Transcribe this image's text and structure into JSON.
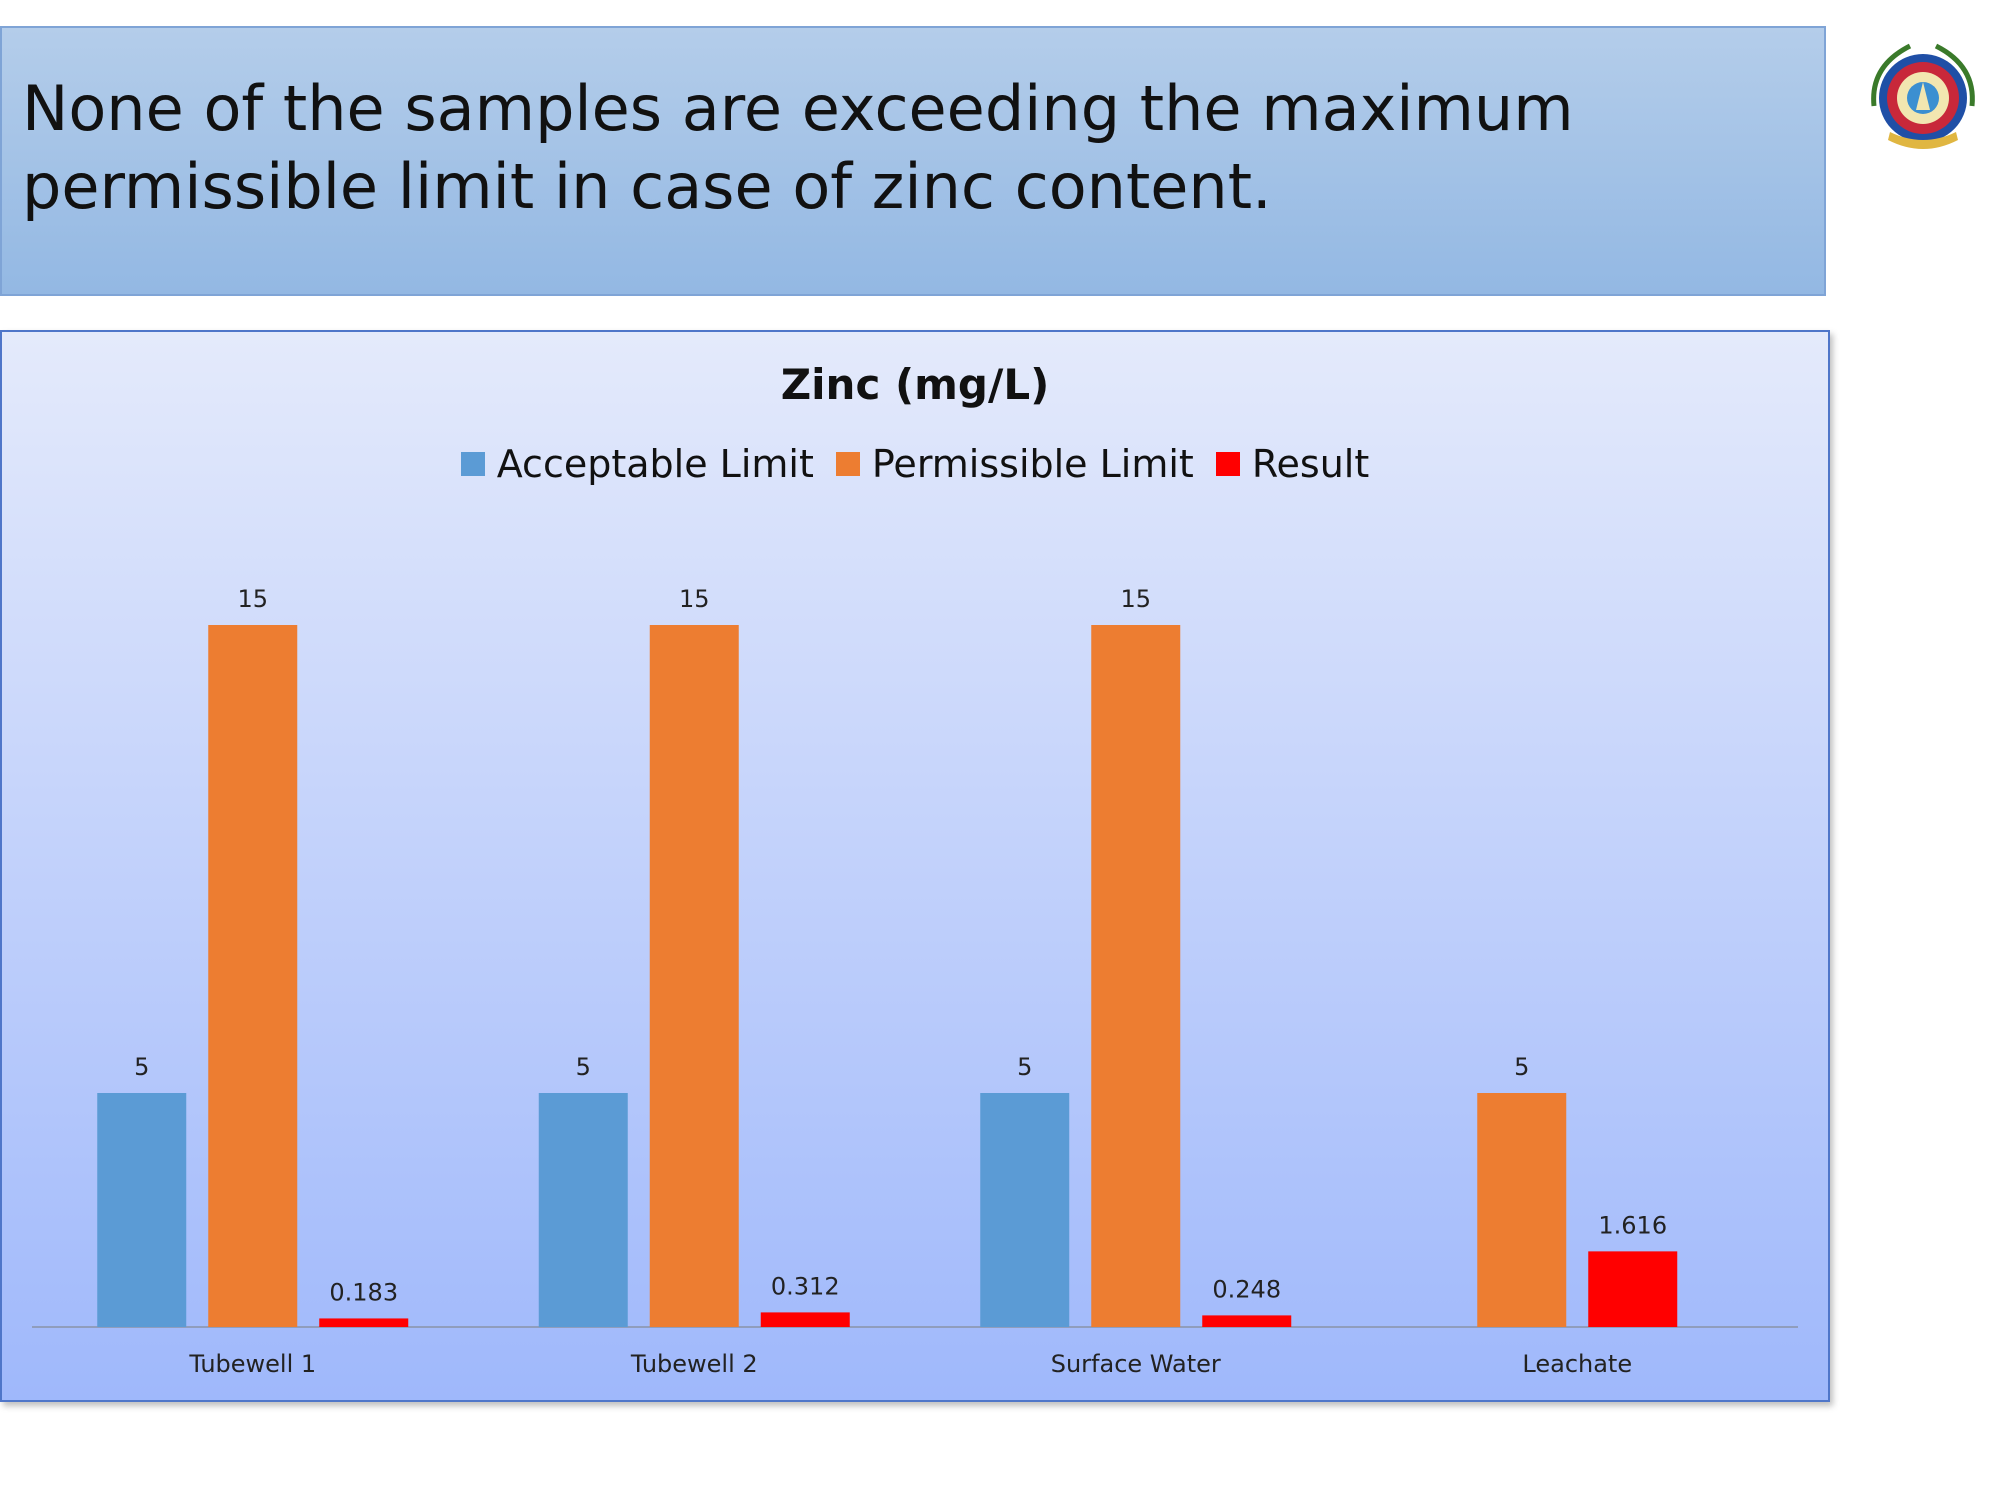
{
  "header": {
    "text": "None of the samples are exceeding the maximum permissible limit in case of zinc content."
  },
  "logo": {
    "icon": "institution-seal-icon"
  },
  "colors": {
    "header_bg_top": "#b4cdea",
    "header_bg_bottom": "#93b8e3",
    "acceptable": "#5b9bd5",
    "permissible": "#ed7d31",
    "result": "#ff0000"
  },
  "chart_data": {
    "type": "bar",
    "title": "Zinc (mg/L)",
    "categories": [
      "Tubewell 1",
      "Tubewell 2",
      "Surface Water",
      "Leachate"
    ],
    "series": [
      {
        "name": "Acceptable Limit",
        "values": [
          5,
          5,
          5,
          null
        ],
        "labels": [
          "5",
          "5",
          "5",
          ""
        ]
      },
      {
        "name": "Permissible Limit",
        "values": [
          15,
          15,
          15,
          5
        ],
        "labels": [
          "15",
          "15",
          "15",
          "5"
        ]
      },
      {
        "name": "Result",
        "values": [
          0.183,
          0.312,
          0.248,
          1.616
        ],
        "labels": [
          "0.183",
          "0.312",
          "0.248",
          "1.616"
        ]
      }
    ],
    "ylim": [
      0,
      15
    ],
    "legend": "top",
    "grid": false
  }
}
